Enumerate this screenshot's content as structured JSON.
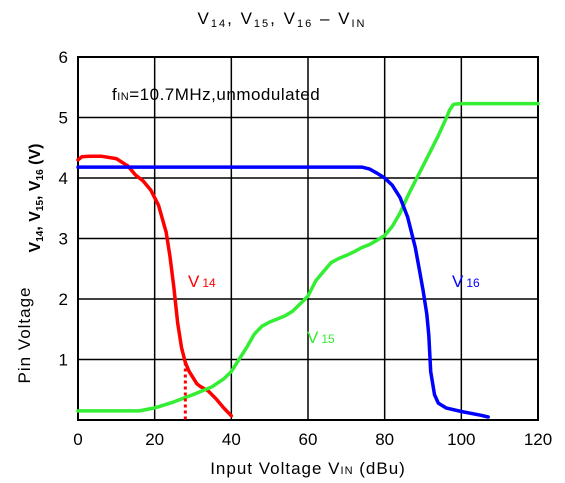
{
  "chart_data": {
    "type": "line",
    "title": "V₁₄, V₁₅, V₁₆ – Vᴵᴺ",
    "title_parts": {
      "v": "V",
      "s14": "14",
      "s15": "15",
      "s16": "16",
      "sep": ", ",
      "dash": " – V",
      "in": "IN"
    },
    "xlabel": "Input Voltage V IN (dBu)",
    "xlabel_parts": {
      "pre": "Input Voltage V",
      "sub": "IN",
      "post": " (dBu)"
    },
    "ylabel": "Pin Voltage",
    "ylabel_quantity_parts": {
      "v": "V",
      "s14": "14",
      "s15": "15",
      "s16": "16",
      "sep": ", ",
      "unit": " (V)"
    },
    "annotation": {
      "f": "f",
      "sub": "IN",
      "rest": "=10.7MHz,unmodulated"
    },
    "xlim": [
      0,
      120
    ],
    "ylim": [
      0,
      6
    ],
    "x_ticks": [
      "0",
      "20",
      "40",
      "60",
      "80",
      "100",
      "120"
    ],
    "y_ticks": [
      "1",
      "2",
      "3",
      "4",
      "5",
      "6"
    ],
    "grid": true,
    "series": [
      {
        "name": "V14",
        "label_v": "V",
        "label_sub": "14",
        "color": "#ff0000",
        "x": [
          0,
          1,
          3,
          6,
          10,
          13,
          15,
          17,
          19,
          21,
          23,
          24,
          25,
          26,
          27,
          28,
          29,
          30,
          31,
          32,
          34,
          36,
          38,
          40
        ],
        "y": [
          4.3,
          4.35,
          4.36,
          4.36,
          4.32,
          4.2,
          4.05,
          3.95,
          3.8,
          3.55,
          3.1,
          2.7,
          2.2,
          1.6,
          1.2,
          0.95,
          0.8,
          0.7,
          0.6,
          0.55,
          0.48,
          0.35,
          0.2,
          0.07
        ]
      },
      {
        "name": "V15",
        "label_v": "V",
        "label_sub": "15",
        "color": "#33ee33",
        "x": [
          0,
          12,
          16,
          20,
          25,
          30,
          35,
          38,
          40,
          42,
          44,
          46,
          48,
          50,
          52,
          54,
          56,
          58,
          60,
          62,
          64,
          66,
          68,
          70,
          72,
          74,
          76,
          78,
          80,
          82,
          84,
          86,
          88,
          90,
          92,
          94,
          96,
          97,
          98,
          100,
          110,
          120
        ],
        "y": [
          0.15,
          0.15,
          0.15,
          0.2,
          0.3,
          0.42,
          0.55,
          0.68,
          0.8,
          1.0,
          1.2,
          1.42,
          1.55,
          1.62,
          1.67,
          1.72,
          1.8,
          1.92,
          2.05,
          2.3,
          2.45,
          2.6,
          2.67,
          2.72,
          2.78,
          2.85,
          2.9,
          2.97,
          3.05,
          3.2,
          3.42,
          3.7,
          3.95,
          4.2,
          4.45,
          4.7,
          4.98,
          5.13,
          5.22,
          5.23,
          5.23,
          5.23
        ]
      },
      {
        "name": "V16",
        "label_v": "V",
        "label_sub": "16",
        "color": "#0000ff",
        "x": [
          0,
          20,
          40,
          60,
          70,
          74,
          76,
          78,
          80,
          82,
          84,
          86,
          88,
          89,
          90,
          91,
          91.5,
          92,
          93,
          94,
          96,
          100,
          105,
          107
        ],
        "y": [
          4.18,
          4.18,
          4.18,
          4.18,
          4.18,
          4.18,
          4.15,
          4.08,
          4.0,
          3.88,
          3.68,
          3.35,
          2.85,
          2.5,
          2.15,
          1.75,
          1.4,
          0.8,
          0.42,
          0.28,
          0.2,
          0.14,
          0.08,
          0.05
        ]
      }
    ],
    "marker": {
      "x": 28,
      "y": 0.95,
      "color": "#ff0000",
      "style": "dotted"
    }
  }
}
